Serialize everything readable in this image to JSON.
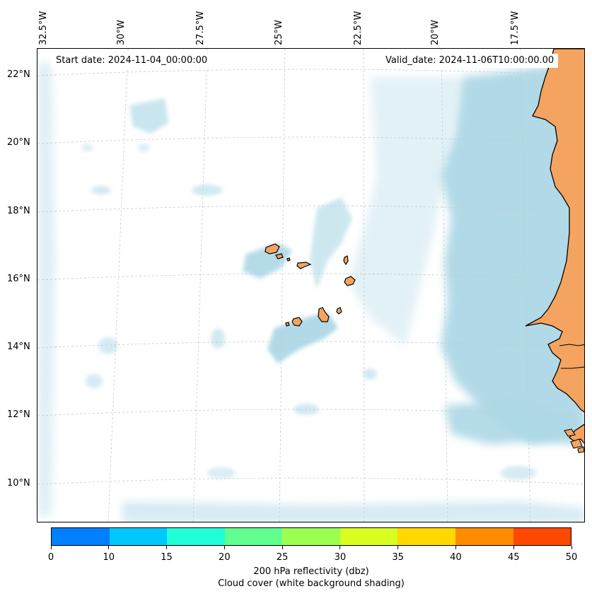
{
  "header": {
    "start_date": "Start date: 2024-11-04_00:00:00",
    "valid_date": "Valid_date: 2024-11-06T10:00:00.00"
  },
  "longitude_labels": [
    "32.5°W",
    "30°W",
    "27.5°W",
    "25°W",
    "22.5°W",
    "20°W",
    "17.5°W"
  ],
  "latitude_labels": [
    "22°N",
    "20°N",
    "18°N",
    "16°N",
    "14°N",
    "12°N",
    "10°N"
  ],
  "colors": {
    "land": "#f4a460",
    "cloud": "#add8e6",
    "ocean": "#ffffff",
    "coastline": "#000000",
    "gridline": "#c8c8c8"
  },
  "colorbar": {
    "ticks": [
      "0",
      "10",
      "15",
      "20",
      "25",
      "30",
      "35",
      "40",
      "45",
      "50"
    ],
    "colors": [
      "#0080ff",
      "#00c8ff",
      "#20ffd8",
      "#60ff90",
      "#9cff50",
      "#d8ff20",
      "#ffd800",
      "#ff8c00",
      "#ff4800"
    ],
    "label_line1": "200 hPa reflectivity (dbz)",
    "label_line2": "Cloud cover (white background shading)"
  }
}
